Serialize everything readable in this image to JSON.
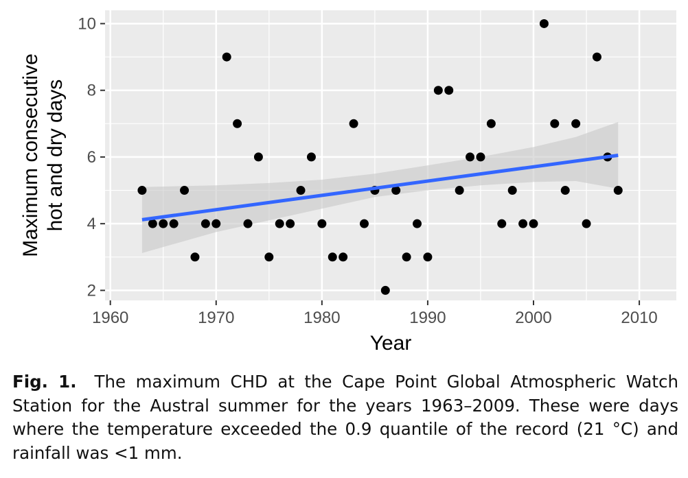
{
  "chart_data": {
    "type": "scatter",
    "xlabel": "Year",
    "ylabel_lines": [
      "Maximum consecutive",
      "hot and dry days"
    ],
    "xlim": [
      1959.5,
      2013.5
    ],
    "ylim": [
      1.7,
      10.4
    ],
    "xticks": [
      1960,
      1970,
      1980,
      1990,
      2000,
      2010
    ],
    "yticks": [
      2,
      4,
      6,
      8,
      10
    ],
    "grid": true,
    "points": [
      {
        "x": 1963,
        "y": 5
      },
      {
        "x": 1964,
        "y": 4
      },
      {
        "x": 1965,
        "y": 4
      },
      {
        "x": 1966,
        "y": 4
      },
      {
        "x": 1967,
        "y": 5
      },
      {
        "x": 1968,
        "y": 3
      },
      {
        "x": 1969,
        "y": 4
      },
      {
        "x": 1970,
        "y": 4
      },
      {
        "x": 1971,
        "y": 9
      },
      {
        "x": 1972,
        "y": 7
      },
      {
        "x": 1973,
        "y": 4
      },
      {
        "x": 1974,
        "y": 6
      },
      {
        "x": 1975,
        "y": 3
      },
      {
        "x": 1976,
        "y": 4
      },
      {
        "x": 1977,
        "y": 4
      },
      {
        "x": 1978,
        "y": 5
      },
      {
        "x": 1979,
        "y": 6
      },
      {
        "x": 1980,
        "y": 4
      },
      {
        "x": 1981,
        "y": 3
      },
      {
        "x": 1982,
        "y": 3
      },
      {
        "x": 1983,
        "y": 7
      },
      {
        "x": 1984,
        "y": 4
      },
      {
        "x": 1985,
        "y": 5
      },
      {
        "x": 1986,
        "y": 2
      },
      {
        "x": 1987,
        "y": 5
      },
      {
        "x": 1988,
        "y": 3
      },
      {
        "x": 1989,
        "y": 4
      },
      {
        "x": 1990,
        "y": 3
      },
      {
        "x": 1991,
        "y": 8
      },
      {
        "x": 1992,
        "y": 8
      },
      {
        "x": 1993,
        "y": 5
      },
      {
        "x": 1994,
        "y": 6
      },
      {
        "x": 1995,
        "y": 6
      },
      {
        "x": 1996,
        "y": 7
      },
      {
        "x": 1997,
        "y": 4
      },
      {
        "x": 1998,
        "y": 5
      },
      {
        "x": 1999,
        "y": 4
      },
      {
        "x": 2000,
        "y": 4
      },
      {
        "x": 2001,
        "y": 10
      },
      {
        "x": 2002,
        "y": 7
      },
      {
        "x": 2003,
        "y": 5
      },
      {
        "x": 2004,
        "y": 7
      },
      {
        "x": 2005,
        "y": 4
      },
      {
        "x": 2006,
        "y": 9
      },
      {
        "x": 2007,
        "y": 6
      },
      {
        "x": 2008,
        "y": 5
      }
    ],
    "trend": {
      "x": [
        1963,
        2008
      ],
      "y": [
        4.12,
        6.05
      ]
    },
    "confidence_band": {
      "x": [
        1963,
        1970,
        1975,
        1980,
        1985,
        1990,
        1995,
        2000,
        2004,
        2008
      ],
      "upper": [
        5.1,
        5.15,
        5.22,
        5.32,
        5.5,
        5.75,
        6.0,
        6.3,
        6.6,
        7.05
      ],
      "lower": [
        3.12,
        3.75,
        4.1,
        4.45,
        4.8,
        5.0,
        5.15,
        5.25,
        5.28,
        5.05
      ]
    },
    "colors": {
      "panel": "#ebebeb",
      "grid": "#ffffff",
      "point": "#000000",
      "trend": "#3366ff",
      "band": "#c8c8c8"
    }
  },
  "caption": {
    "label": "Fig. 1.",
    "text": "The maximum CHD at the Cape Point Global Atmospheric Watch Station for the Austral summer for the years 1963–2009. These were days where the temperature exceeded the 0.9 quantile of the record (21 °C) and rainfall was <1 mm."
  }
}
